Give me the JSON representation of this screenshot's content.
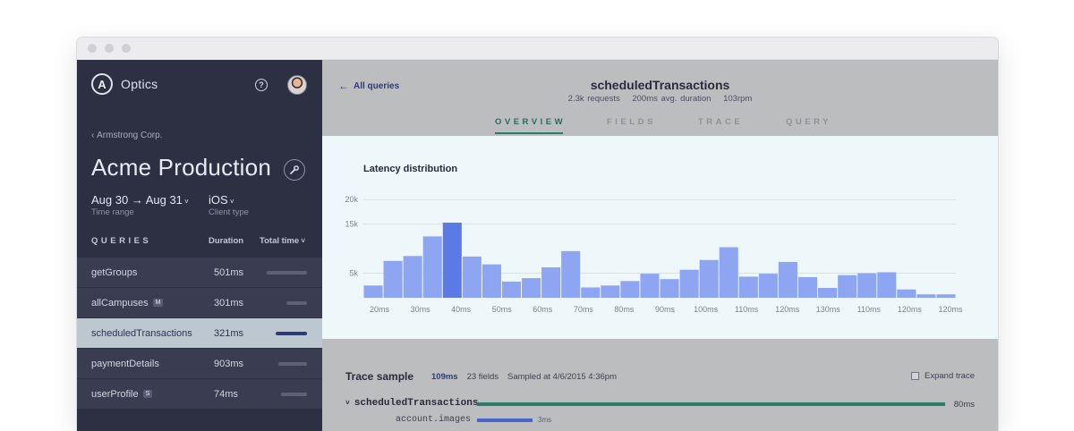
{
  "app": {
    "name": "Optics",
    "logo_letter": "A"
  },
  "sidebar": {
    "breadcrumb": "Armstrong Corp.",
    "title": "Acme Production",
    "filters": [
      {
        "value": "Aug 30 → Aug 31",
        "label": "Time range"
      },
      {
        "value": "iOS",
        "label": "Client type"
      }
    ],
    "queries_header": {
      "queries": "QUERIES",
      "duration": "Duration",
      "total_time": "Total time"
    },
    "queries": [
      {
        "name": "getGroups",
        "badge": "",
        "duration": "501ms",
        "total_fraction": 0.98,
        "selected": false
      },
      {
        "name": "allCampuses",
        "badge": "M",
        "duration": "301ms",
        "total_fraction": 0.5,
        "selected": false
      },
      {
        "name": "scheduledTransactions",
        "badge": "",
        "duration": "321ms",
        "total_fraction": 0.76,
        "selected": true
      },
      {
        "name": "paymentDetails",
        "badge": "",
        "duration": "903ms",
        "total_fraction": 0.7,
        "selected": false
      },
      {
        "name": "userProfile",
        "badge": "S",
        "duration": "74ms",
        "total_fraction": 0.62,
        "selected": false
      }
    ]
  },
  "header": {
    "back_label": "All queries",
    "query_title": "scheduledTransactions",
    "stats": [
      "2.3k requests",
      "200ms avg. duration",
      "103rpm"
    ],
    "tabs": [
      {
        "label": "OVERVIEW",
        "active": true
      },
      {
        "label": "FIELDS",
        "active": false
      },
      {
        "label": "TRACE",
        "active": false
      },
      {
        "label": "QUERY",
        "active": false
      }
    ]
  },
  "chart_data": {
    "type": "bar",
    "title": "Latency distribution",
    "y_ticks": [
      "5k",
      "15k",
      "20k"
    ],
    "y_tick_values": [
      5000,
      15000,
      20000
    ],
    "ylim": [
      0,
      23500
    ],
    "x_tick_labels": [
      "20ms",
      "30ms",
      "40ms",
      "50ms",
      "60ms",
      "70ms",
      "80ms",
      "90ms",
      "100ms",
      "110ms",
      "120ms",
      "130ms",
      "110ms",
      "120ms",
      "120ms"
    ],
    "values": [
      2500,
      7500,
      8500,
      12500,
      15300,
      8400,
      6800,
      3300,
      4000,
      6200,
      9500,
      2100,
      2500,
      3400,
      4900,
      3800,
      5700,
      7700,
      10300,
      4300,
      4900,
      7300,
      4200,
      2000,
      4600,
      5000,
      5200,
      1700,
      700,
      700
    ],
    "bar_color": "#8ea5f2",
    "highlight_color": "#5b7ae6"
  },
  "trace": {
    "title": "Trace sample",
    "duration": "109ms",
    "fields": "23 fields",
    "sampled": "Sampled at 4/6/2015 4:36pm",
    "expand_label": "Expand trace",
    "root_name": "scheduledTransactions",
    "root_duration": "80ms",
    "child_name": "account.images",
    "child_duration": "3ms"
  },
  "colors": {
    "sidebar_bg": "#2d3043",
    "accent_teal": "#2b7a6a",
    "accent_blue": "#2e3b77"
  }
}
